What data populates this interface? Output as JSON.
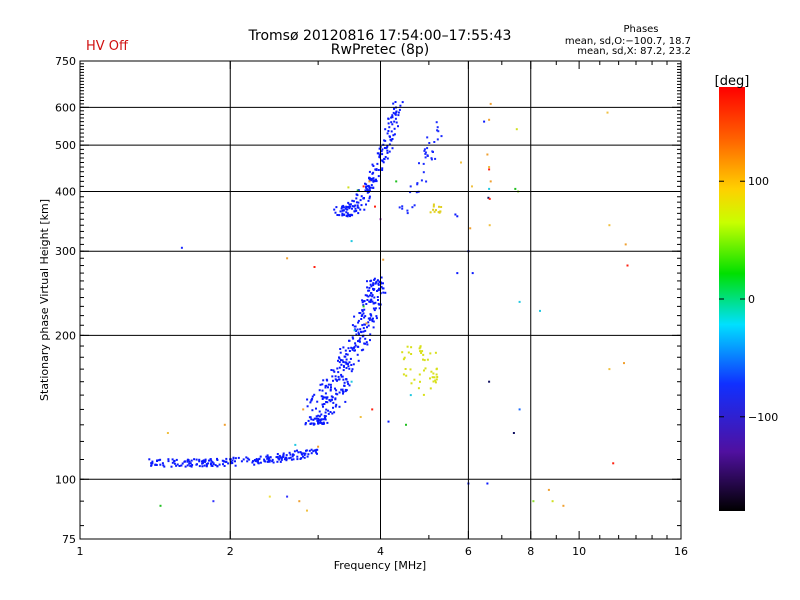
{
  "chart_data": {
    "type": "scatter",
    "title": "Tromsø 20120816 17:54:00–17:55:43",
    "subtitle": "RwPretec (8p)",
    "status_label": "HV Off",
    "phase_box": {
      "title": "Phases",
      "line_o": "mean, sd,O:−100.7, 18.7",
      "line_x": "mean, sd,X:  87.2, 23.2"
    },
    "xlabel": "Frequency [MHz]",
    "ylabel": "Stationary phase Virtual Height [km]",
    "xscale": "log2",
    "yscale": "log",
    "xlim": [
      1,
      16
    ],
    "ylim": [
      75,
      750
    ],
    "xticks": [
      1,
      2,
      4,
      6,
      8,
      10,
      16
    ],
    "xgrid": [
      2,
      4,
      6,
      8
    ],
    "yticks": [
      75,
      100,
      200,
      300,
      400,
      500,
      600,
      750
    ],
    "ygrid": [
      100,
      200,
      300,
      400,
      500,
      600
    ],
    "colorbar": {
      "label": "[deg]",
      "range": [
        -180,
        180
      ],
      "ticks": [
        100,
        0,
        -100
      ],
      "tick_labels": [
        "100",
        "0",
        "−100"
      ]
    },
    "series": [
      {
        "name": "E-region O trace (dense)",
        "color": "#0a19ff",
        "region": {
          "x": [
            1.4,
            2.95
          ],
          "y": [
            103,
            120
          ],
          "count": 210,
          "curve": "e_trace"
        }
      },
      {
        "name": "F1 layer O trace",
        "color": "#0a19ff",
        "region": {
          "x": [
            2.9,
            4.0
          ],
          "y": [
            130,
            265
          ],
          "count": 340,
          "curve": "f1_trace"
        }
      },
      {
        "name": "F2 layer O trace",
        "color": "#0a19ff",
        "region": {
          "x": [
            3.3,
            4.35
          ],
          "y": [
            355,
            620
          ],
          "count": 190,
          "curve": "f2_trace"
        }
      },
      {
        "name": "F2 X trace cluster",
        "color": "#1a2aff",
        "region": {
          "x": [
            4.4,
            5.2
          ],
          "y": [
            360,
            560
          ],
          "count": 40,
          "curve": "f2x_trace"
        }
      },
      {
        "name": "F1 X echoes (yellow)",
        "color": "#d8e01a",
        "region": {
          "x": [
            4.4,
            5.2
          ],
          "y": [
            150,
            190
          ],
          "count": 45,
          "curve": "cloud"
        }
      },
      {
        "name": "F2 X echoes (yellow)",
        "color": "#e0d020",
        "region": {
          "x": [
            5.0,
            5.3
          ],
          "y": [
            360,
            380
          ],
          "count": 12,
          "curve": "cloud"
        }
      }
    ],
    "points": [
      {
        "x": 1.6,
        "y": 305,
        "c": "#1a2aff"
      },
      {
        "x": 1.45,
        "y": 88,
        "c": "#20c020"
      },
      {
        "x": 1.85,
        "y": 90,
        "c": "#3030ff"
      },
      {
        "x": 1.5,
        "y": 125,
        "c": "#f0c040"
      },
      {
        "x": 2.6,
        "y": 92,
        "c": "#3030ff"
      },
      {
        "x": 2.4,
        "y": 92,
        "c": "#f0e040"
      },
      {
        "x": 2.75,
        "y": 90,
        "c": "#f0a030"
      },
      {
        "x": 2.85,
        "y": 86,
        "c": "#f0c040"
      },
      {
        "x": 1.95,
        "y": 130,
        "c": "#f0a030"
      },
      {
        "x": 2.6,
        "y": 290,
        "c": "#f0a030"
      },
      {
        "x": 2.95,
        "y": 278,
        "c": "#ff2010"
      },
      {
        "x": 4.05,
        "y": 288,
        "c": "#f0a030"
      },
      {
        "x": 6.0,
        "y": 98,
        "c": "#0a19ff"
      },
      {
        "x": 6.55,
        "y": 98,
        "c": "#0a19ff"
      },
      {
        "x": 6.6,
        "y": 160,
        "c": "#101060"
      },
      {
        "x": 7.4,
        "y": 125,
        "c": "#101060"
      },
      {
        "x": 7.6,
        "y": 140,
        "c": "#1a6aff"
      },
      {
        "x": 8.35,
        "y": 225,
        "c": "#20c8e0"
      },
      {
        "x": 8.7,
        "y": 95,
        "c": "#f0a030"
      },
      {
        "x": 8.1,
        "y": 90,
        "c": "#90e030"
      },
      {
        "x": 8.85,
        "y": 90,
        "c": "#d0e020"
      },
      {
        "x": 9.3,
        "y": 88,
        "c": "#f0a030"
      },
      {
        "x": 11.4,
        "y": 585,
        "c": "#f0c040"
      },
      {
        "x": 11.5,
        "y": 340,
        "c": "#f0c040"
      },
      {
        "x": 11.7,
        "y": 108,
        "c": "#ff2010"
      },
      {
        "x": 12.4,
        "y": 310,
        "c": "#f0a030"
      },
      {
        "x": 12.5,
        "y": 280,
        "c": "#ff2010"
      },
      {
        "x": 11.5,
        "y": 170,
        "c": "#f0c040"
      },
      {
        "x": 12.3,
        "y": 175,
        "c": "#f0a030"
      },
      {
        "x": 6.65,
        "y": 610,
        "c": "#f0a030"
      },
      {
        "x": 6.6,
        "y": 565,
        "c": "#f0a030"
      },
      {
        "x": 6.45,
        "y": 560,
        "c": "#0a19ff"
      },
      {
        "x": 7.5,
        "y": 540,
        "c": "#d0e020"
      },
      {
        "x": 6.55,
        "y": 478,
        "c": "#f0a030"
      },
      {
        "x": 6.6,
        "y": 445,
        "c": "#ff2010"
      },
      {
        "x": 6.65,
        "y": 420,
        "c": "#f0a030"
      },
      {
        "x": 6.6,
        "y": 405,
        "c": "#20c8e0"
      },
      {
        "x": 6.58,
        "y": 388,
        "c": "#101060"
      },
      {
        "x": 6.62,
        "y": 386,
        "c": "#ff2010"
      },
      {
        "x": 6.1,
        "y": 410,
        "c": "#f0c040"
      },
      {
        "x": 6.05,
        "y": 335,
        "c": "#f0a030"
      },
      {
        "x": 6.62,
        "y": 340,
        "c": "#f0c040"
      },
      {
        "x": 6.12,
        "y": 270,
        "c": "#0a19ff"
      },
      {
        "x": 6.0,
        "y": 300,
        "c": "#0a19ff"
      },
      {
        "x": 5.7,
        "y": 270,
        "c": "#0a19ff"
      },
      {
        "x": 5.8,
        "y": 460,
        "c": "#f0c040"
      },
      {
        "x": 5.7,
        "y": 355,
        "c": "#0a19ff"
      },
      {
        "x": 5.65,
        "y": 358,
        "c": "#0a19ff"
      },
      {
        "x": 7.45,
        "y": 405,
        "c": "#20c020"
      },
      {
        "x": 7.55,
        "y": 400,
        "c": "#90e030"
      },
      {
        "x": 7.6,
        "y": 235,
        "c": "#20c8e0"
      },
      {
        "x": 6.6,
        "y": 450,
        "c": "#f0c040"
      },
      {
        "x": 4.0,
        "y": 350,
        "c": "#a040c0"
      },
      {
        "x": 3.5,
        "y": 315,
        "c": "#20c8e0"
      },
      {
        "x": 3.7,
        "y": 230,
        "c": "#20c020"
      },
      {
        "x": 3.75,
        "y": 212,
        "c": "#f0a030"
      },
      {
        "x": 3.55,
        "y": 205,
        "c": "#20c8e0"
      },
      {
        "x": 3.65,
        "y": 135,
        "c": "#f0c040"
      },
      {
        "x": 3.85,
        "y": 140,
        "c": "#ff2010"
      },
      {
        "x": 4.15,
        "y": 132,
        "c": "#0a19ff"
      },
      {
        "x": 3.5,
        "y": 160,
        "c": "#20c8e0"
      },
      {
        "x": 4.5,
        "y": 130,
        "c": "#20c020"
      },
      {
        "x": 4.6,
        "y": 150,
        "c": "#20c8e0"
      },
      {
        "x": 2.8,
        "y": 140,
        "c": "#f0a030"
      },
      {
        "x": 2.7,
        "y": 118,
        "c": "#20c8e0"
      },
      {
        "x": 3.0,
        "y": 117,
        "c": "#f0a030"
      },
      {
        "x": 3.6,
        "y": 402,
        "c": "#20c020"
      },
      {
        "x": 3.45,
        "y": 408,
        "c": "#d0e020"
      },
      {
        "x": 3.7,
        "y": 410,
        "c": "#ff2010"
      },
      {
        "x": 3.8,
        "y": 420,
        "c": "#f0a030"
      },
      {
        "x": 4.3,
        "y": 420,
        "c": "#20c020"
      },
      {
        "x": 3.9,
        "y": 372,
        "c": "#ff2010"
      }
    ]
  }
}
